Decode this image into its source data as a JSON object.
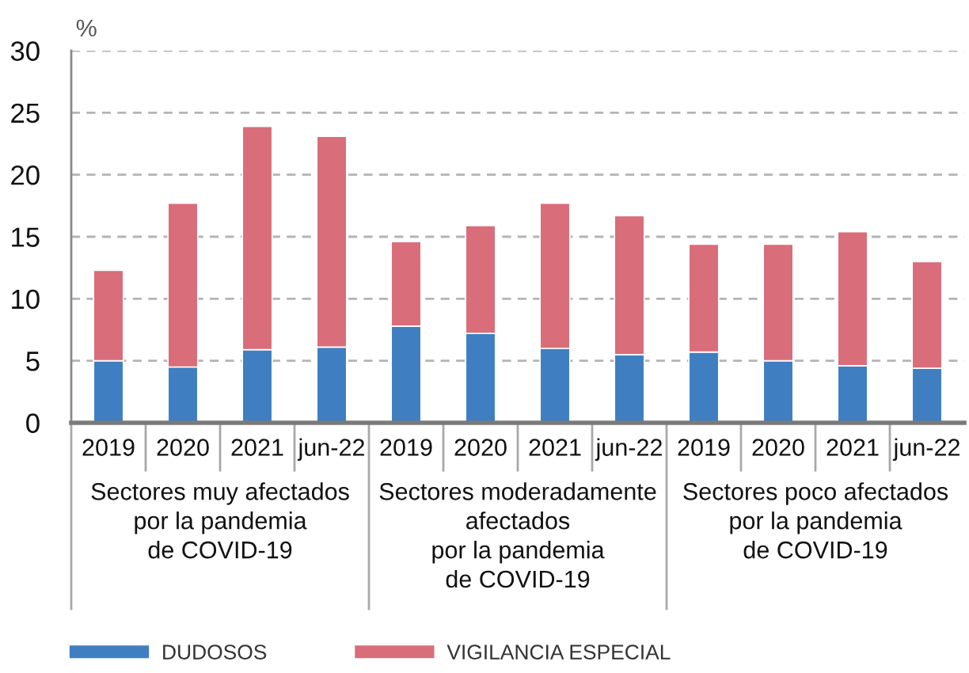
{
  "chart_data": {
    "type": "bar",
    "stacked": true,
    "ylabel": "%",
    "categories": [
      "2019",
      "2020",
      "2021",
      "jun-22",
      "2019",
      "2020",
      "2021",
      "jun-22",
      "2019",
      "2020",
      "2021",
      "jun-22"
    ],
    "series": [
      {
        "name": "DUDOSOS",
        "color": "#3f7fc1",
        "values": [
          5.0,
          4.5,
          5.9,
          6.1,
          7.8,
          7.2,
          6.0,
          5.5,
          5.7,
          5.0,
          4.6,
          4.4
        ]
      },
      {
        "name": "VIGILANCIA ESPECIAL",
        "color": "#d96d7a",
        "values": [
          7.3,
          13.2,
          18.0,
          17.0,
          6.8,
          8.7,
          11.7,
          11.2,
          8.7,
          9.4,
          10.8,
          8.6
        ]
      }
    ],
    "ylim": [
      0,
      30
    ],
    "yticks": [
      0,
      5,
      10,
      15,
      20,
      25,
      30
    ],
    "grid": "y",
    "legend": "bottom",
    "annotations": [
      "Sectores muy afectados\npor la pandemia\nde COVID-19",
      "Sectores moderadamente\nafectados\npor la pandemia\nde COVID-19",
      "Sectores poco afectados\npor la pandemia\nde COVID-19"
    ]
  }
}
